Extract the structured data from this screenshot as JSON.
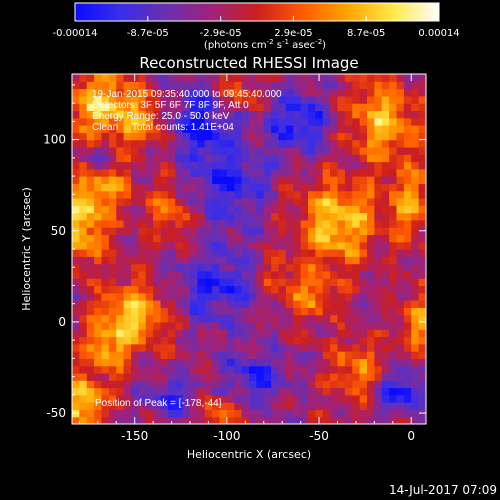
{
  "chart_data": {
    "type": "heatmap",
    "title": "Reconstructed RHESSI Image",
    "xlabel": "Heliocentric X (arcsec)",
    "ylabel": "Heliocentric Y (arcsec)",
    "xlim": [
      -184,
      8
    ],
    "ylim": [
      -56,
      136
    ],
    "x_ticks": [
      -150,
      -100,
      -50,
      0
    ],
    "y_ticks": [
      -50,
      0,
      50,
      100
    ],
    "colorbar": {
      "min": -0.00014,
      "max": 0.00014,
      "tick_labels": [
        "-0.00014",
        "-8.7e-05",
        "-2.9e-05",
        "2.9e-05",
        "8.7e-05",
        "0.00014"
      ],
      "unit_main": "(photons cm",
      "unit_sup1": "-2",
      "unit_mid": " s",
      "unit_sup2": "-1",
      "unit_end": " asec",
      "unit_sup3": "-2",
      "unit_close": ")",
      "colormap": [
        "#0a0aff",
        "#3a2ee8",
        "#6a2fb0",
        "#a0227a",
        "#cc1f1f",
        "#ff5a00",
        "#ffa500",
        "#ffe94a",
        "#ffffff"
      ]
    },
    "annotations": [
      "19-Jan-2015 09:35:40.000 to 09:45:40.000",
      "Detectors: 3F 5F 6F 7F 8F 9F, Att 0",
      "Energy Range: 25.0 - 50.0 keV",
      "Clean     Total counts: 1.41E+04"
    ],
    "peak_label": "Position of Peak = [-178,-44]",
    "peak": [
      -178,
      -44
    ],
    "footer_date": "14-Jul-2017 07:09",
    "hot_regions": [
      {
        "x": -170,
        "y": 120,
        "sx": 14,
        "sy": 14,
        "amp": 1.0
      },
      {
        "x": -145,
        "y": 110,
        "sx": 10,
        "sy": 10,
        "amp": 0.8
      },
      {
        "x": -178,
        "y": 55,
        "sx": 10,
        "sy": 16,
        "amp": 1.0
      },
      {
        "x": -165,
        "y": 75,
        "sx": 10,
        "sy": 10,
        "amp": 0.6
      },
      {
        "x": -130,
        "y": 60,
        "sx": 9,
        "sy": 12,
        "amp": 0.7
      },
      {
        "x": -150,
        "y": 5,
        "sx": 14,
        "sy": 12,
        "amp": 1.0
      },
      {
        "x": -165,
        "y": -15,
        "sx": 10,
        "sy": 10,
        "amp": 0.8
      },
      {
        "x": -178,
        "y": -44,
        "sx": 9,
        "sy": 10,
        "amp": 1.05
      },
      {
        "x": -40,
        "y": 55,
        "sx": 16,
        "sy": 16,
        "amp": 1.05
      },
      {
        "x": -15,
        "y": 110,
        "sx": 14,
        "sy": 16,
        "amp": 0.95
      },
      {
        "x": 0,
        "y": 65,
        "sx": 8,
        "sy": 14,
        "amp": 0.8
      },
      {
        "x": -55,
        "y": 15,
        "sx": 10,
        "sy": 10,
        "amp": 0.7
      },
      {
        "x": -30,
        "y": -25,
        "sx": 10,
        "sy": 12,
        "amp": 0.7
      },
      {
        "x": 5,
        "y": 0,
        "sx": 8,
        "sy": 12,
        "amp": 0.8
      },
      {
        "x": -105,
        "y": -50,
        "sx": 8,
        "sy": 8,
        "amp": 0.6
      },
      {
        "x": -95,
        "y": 125,
        "sx": 9,
        "sy": 8,
        "amp": 0.6
      },
      {
        "x": -75,
        "y": 25,
        "sx": 8,
        "sy": 8,
        "amp": 0.5
      }
    ],
    "cold_regions": [
      {
        "x": -115,
        "y": 110,
        "sx": 14,
        "sy": 12,
        "amp": 0.8
      },
      {
        "x": -100,
        "y": 75,
        "sx": 16,
        "sy": 16,
        "amp": 0.7
      },
      {
        "x": -60,
        "y": 110,
        "sx": 12,
        "sy": 12,
        "amp": 0.8
      },
      {
        "x": -105,
        "y": 20,
        "sx": 18,
        "sy": 14,
        "amp": 0.7
      },
      {
        "x": -5,
        "y": -38,
        "sx": 8,
        "sy": 8,
        "amp": 0.9
      },
      {
        "x": -130,
        "y": -40,
        "sx": 10,
        "sy": 8,
        "amp": 0.6
      },
      {
        "x": -85,
        "y": -30,
        "sx": 12,
        "sy": 10,
        "amp": 0.7
      },
      {
        "x": -170,
        "y": 90,
        "sx": 6,
        "sy": 6,
        "amp": 0.5
      }
    ]
  }
}
